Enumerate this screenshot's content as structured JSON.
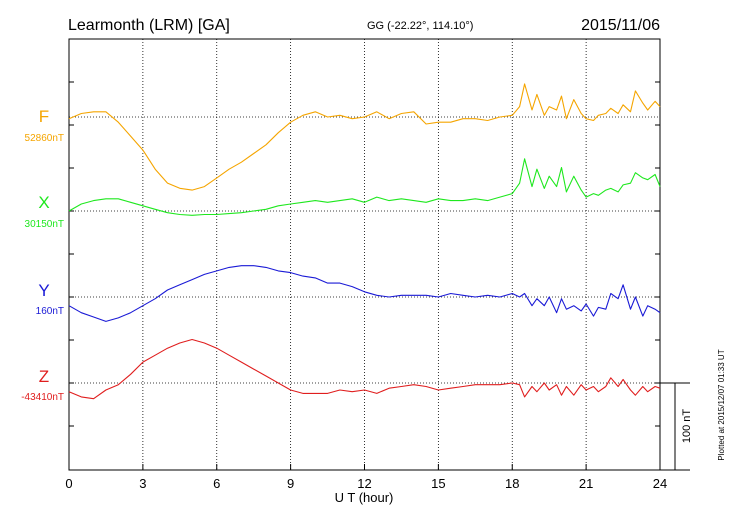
{
  "header": {
    "title": "Learmonth (LRM)  [GA]",
    "coords": "GG (-22.22°, 114.10°)",
    "date": "2015/11/06"
  },
  "side_note": "Plotted at 2015/12/07 01:33 UT",
  "scale_label": "100 nT",
  "chart_data": {
    "type": "line",
    "title": "Learmonth (LRM)  [GA]",
    "xlabel": "U T (hour)",
    "xlim": [
      0,
      24
    ],
    "xticks": [
      "0",
      "3",
      "6",
      "9",
      "12",
      "15",
      "18",
      "21",
      "24"
    ],
    "grid": true,
    "scale_bar_nT": 100,
    "series": [
      {
        "name": "F",
        "baseline_label": "52860nT",
        "baseline": 52860,
        "color": "#f5a500",
        "x": [
          0,
          0.5,
          1,
          1.5,
          2,
          2.5,
          3,
          3.5,
          4,
          4.5,
          5,
          5.5,
          6,
          6.5,
          7,
          7.5,
          8,
          8.5,
          9,
          9.5,
          10,
          10.5,
          11,
          11.5,
          12,
          12.5,
          13,
          13.5,
          14,
          14.5,
          15,
          15.5,
          16,
          16.5,
          17,
          17.5,
          18,
          18.3,
          18.5,
          18.8,
          19,
          19.3,
          19.5,
          19.8,
          20,
          20.2,
          20.5,
          20.8,
          21,
          21.3,
          21.5,
          21.8,
          22,
          22.3,
          22.5,
          22.8,
          23,
          23.3,
          23.5,
          23.8,
          24
        ],
        "y": [
          52858,
          52864,
          52866,
          52866,
          52854,
          52838,
          52822,
          52800,
          52784,
          52778,
          52776,
          52780,
          52790,
          52800,
          52808,
          52818,
          52828,
          52842,
          52854,
          52862,
          52866,
          52860,
          52862,
          52858,
          52860,
          52866,
          52858,
          52864,
          52866,
          52852,
          52854,
          52854,
          52858,
          52858,
          52856,
          52860,
          52862,
          52872,
          52898,
          52868,
          52886,
          52862,
          52872,
          52868,
          52884,
          52858,
          52880,
          52864,
          52858,
          52856,
          52862,
          52864,
          52870,
          52864,
          52874,
          52866,
          52890,
          52876,
          52868,
          52878,
          52872
        ]
      },
      {
        "name": "X",
        "baseline_label": "30150nT",
        "baseline": 30150,
        "color": "#1ee81e",
        "x": [
          0,
          0.5,
          1,
          1.5,
          2,
          2.5,
          3,
          3.5,
          4,
          4.5,
          5,
          5.5,
          6,
          6.5,
          7,
          7.5,
          8,
          8.5,
          9,
          9.5,
          10,
          10.5,
          11,
          11.5,
          12,
          12.5,
          13,
          13.5,
          14,
          14.5,
          15,
          15.5,
          16,
          16.5,
          17,
          17.5,
          18,
          18.3,
          18.5,
          18.8,
          19,
          19.3,
          19.5,
          19.8,
          20,
          20.2,
          20.5,
          20.8,
          21,
          21.3,
          21.5,
          21.8,
          22,
          22.3,
          22.5,
          22.8,
          23,
          23.3,
          23.5,
          23.8,
          24
        ],
        "y": [
          30150,
          30158,
          30162,
          30164,
          30164,
          30160,
          30156,
          30152,
          30148,
          30146,
          30145,
          30146,
          30146,
          30147,
          30148,
          30150,
          30152,
          30156,
          30158,
          30160,
          30162,
          30160,
          30162,
          30164,
          30160,
          30166,
          30162,
          30164,
          30162,
          30160,
          30164,
          30162,
          30162,
          30164,
          30162,
          30166,
          30170,
          30182,
          30210,
          30178,
          30198,
          30176,
          30190,
          30178,
          30200,
          30172,
          30190,
          30174,
          30166,
          30170,
          30168,
          30174,
          30176,
          30172,
          30180,
          30182,
          30194,
          30188,
          30186,
          30192,
          30178
        ]
      },
      {
        "name": "Y",
        "baseline_label": "160nT",
        "baseline": 160,
        "color": "#1a1ad6",
        "x": [
          0,
          0.5,
          1,
          1.5,
          2,
          2.5,
          3,
          3.5,
          4,
          4.5,
          5,
          5.5,
          6,
          6.5,
          7,
          7.5,
          8,
          8.5,
          9,
          9.5,
          10,
          10.5,
          11,
          11.5,
          12,
          12.5,
          13,
          13.5,
          14,
          14.5,
          15,
          15.5,
          16,
          16.5,
          17,
          17.5,
          18,
          18.3,
          18.5,
          18.8,
          19,
          19.3,
          19.5,
          19.8,
          20,
          20.2,
          20.5,
          20.8,
          21,
          21.3,
          21.5,
          21.8,
          22,
          22.3,
          22.5,
          22.8,
          23,
          23.3,
          23.5,
          23.8,
          24
        ],
        "y": [
          150,
          142,
          137,
          132,
          136,
          142,
          150,
          158,
          168,
          174,
          180,
          186,
          190,
          194,
          196,
          196,
          194,
          190,
          188,
          184,
          182,
          176,
          176,
          172,
          166,
          162,
          160,
          162,
          162,
          162,
          160,
          164,
          162,
          160,
          162,
          160,
          164,
          160,
          164,
          150,
          158,
          150,
          160,
          142,
          158,
          146,
          150,
          144,
          152,
          138,
          148,
          146,
          164,
          158,
          174,
          146,
          160,
          138,
          150,
          146,
          142
        ]
      },
      {
        "name": "Z",
        "baseline_label": "-43410nT",
        "baseline": -43410,
        "color": "#e01e1e",
        "x": [
          0,
          0.5,
          1,
          1.5,
          2,
          2.5,
          3,
          3.5,
          4,
          4.5,
          5,
          5.5,
          6,
          6.5,
          7,
          7.5,
          8,
          8.5,
          9,
          9.5,
          10,
          10.5,
          11,
          11.5,
          12,
          12.5,
          13,
          13.5,
          14,
          14.5,
          15,
          15.5,
          16,
          16.5,
          17,
          17.5,
          18,
          18.3,
          18.5,
          18.8,
          19,
          19.3,
          19.5,
          19.8,
          20,
          20.2,
          20.5,
          20.8,
          21,
          21.3,
          21.5,
          21.8,
          22,
          22.3,
          22.5,
          22.8,
          23,
          23.3,
          23.5,
          23.8,
          24
        ],
        "y": [
          -43420,
          -43426,
          -43428,
          -43418,
          -43412,
          -43400,
          -43386,
          -43378,
          -43370,
          -43364,
          -43360,
          -43364,
          -43370,
          -43378,
          -43386,
          -43394,
          -43402,
          -43410,
          -43418,
          -43422,
          -43422,
          -43422,
          -43418,
          -43420,
          -43418,
          -43422,
          -43416,
          -43414,
          -43412,
          -43414,
          -43418,
          -43416,
          -43414,
          -43412,
          -43412,
          -43412,
          -43410,
          -43412,
          -43426,
          -43414,
          -43420,
          -43410,
          -43418,
          -43412,
          -43424,
          -43414,
          -43424,
          -43412,
          -43418,
          -43414,
          -43420,
          -43414,
          -43404,
          -43414,
          -43406,
          -43418,
          -43424,
          -43414,
          -43420,
          -43414,
          -43416
        ]
      }
    ]
  }
}
